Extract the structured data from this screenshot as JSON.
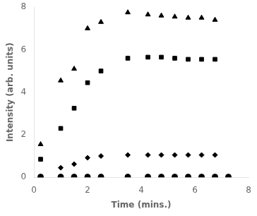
{
  "chart_data": {
    "type": "scatter",
    "xlabel": "Time (mins.)",
    "ylabel": "Intensity (arb. units)",
    "series": [
      {
        "color": "#000000",
        "marker": "triangle",
        "x": [
          0.25,
          1.0,
          1.5,
          2.0,
          2.5,
          3.5,
          4.25,
          4.75,
          5.25,
          5.75,
          6.25,
          6.75
        ],
        "values": [
          1.55,
          4.55,
          5.1,
          7.0,
          7.3,
          7.75,
          7.65,
          7.6,
          7.55,
          7.5,
          7.5,
          7.4
        ]
      },
      {
        "color": "#000000",
        "marker": "square",
        "x": [
          0.25,
          1.0,
          1.5,
          2.0,
          2.5,
          3.5,
          4.25,
          4.75,
          5.25,
          5.75,
          6.25,
          6.75
        ],
        "values": [
          0.85,
          2.3,
          3.25,
          4.45,
          5.0,
          5.6,
          5.65,
          5.65,
          5.6,
          5.55,
          5.55,
          5.55
        ]
      },
      {
        "color": "#000000",
        "marker": "diamond",
        "x": [
          0.25,
          1.0,
          1.5,
          2.0,
          2.5,
          3.5,
          4.25,
          4.75,
          5.25,
          5.75,
          6.25,
          6.75
        ],
        "values": [
          0.0,
          0.45,
          0.62,
          0.92,
          1.0,
          1.05,
          1.05,
          1.05,
          1.05,
          1.05,
          1.05,
          1.05
        ]
      },
      {
        "color": "#000000",
        "marker": "circle",
        "x": [
          0.25,
          1.0,
          1.5,
          2.0,
          2.5,
          3.5,
          4.25,
          4.75,
          5.25,
          5.75,
          6.25,
          6.75,
          7.25
        ],
        "values": [
          0.02,
          0.02,
          0.02,
          0.02,
          0.02,
          0.02,
          0.02,
          0.02,
          0.02,
          0.02,
          0.02,
          0.02,
          0.02
        ]
      }
    ],
    "xlim": [
      0,
      8
    ],
    "ylim": [
      0,
      8
    ],
    "xticks": [
      0,
      2,
      4,
      6,
      8
    ],
    "yticks": [
      0,
      2,
      4,
      6,
      8
    ],
    "grid": false
  }
}
